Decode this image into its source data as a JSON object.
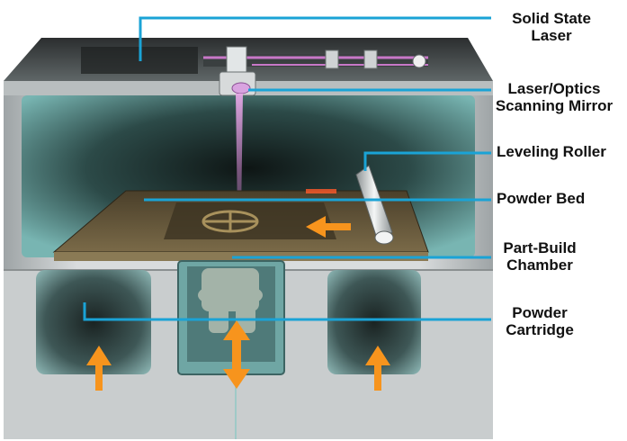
{
  "colors": {
    "leader_line": "#1aa3d6",
    "arrow": "#f7941d",
    "laser_beam": "#c878c8",
    "housing": "#cfd3d4",
    "interior": "#74b3b0",
    "powder_bed": "#6e5e3e"
  },
  "labels": {
    "solid_state_laser": [
      "Solid State",
      "Laser"
    ],
    "laser_optics_mirror": [
      "Laser/Optics",
      "Scanning Mirror"
    ],
    "leveling_roller": [
      "Leveling Roller"
    ],
    "powder_bed": [
      "Powder Bed"
    ],
    "part_build_chamber": [
      "Part-Build",
      "Chamber"
    ],
    "powder_cartridge": [
      "Powder",
      "Cartridge"
    ]
  }
}
